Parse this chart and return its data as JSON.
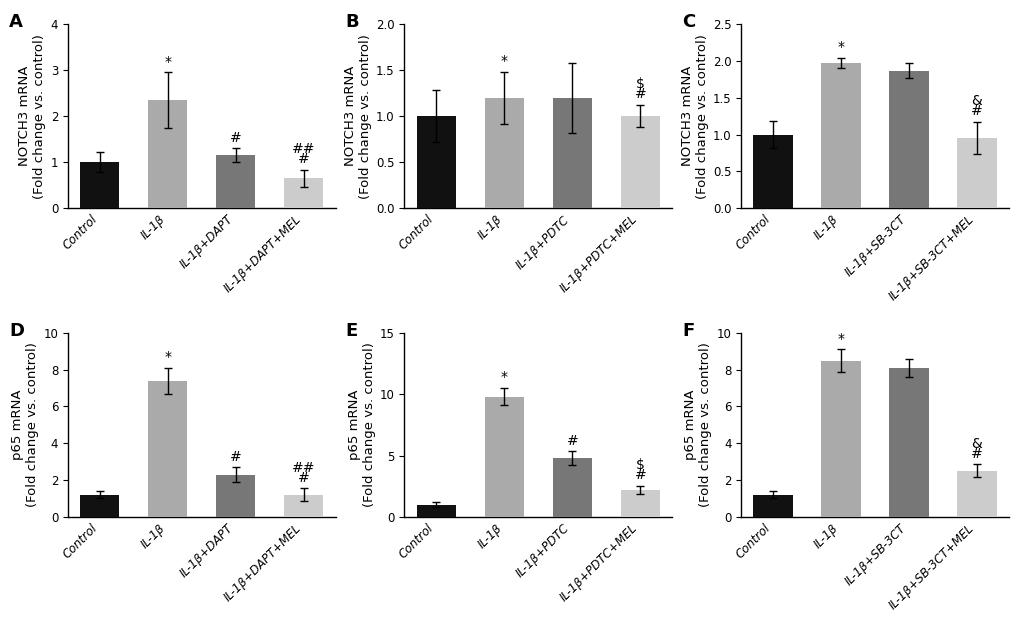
{
  "panels": [
    {
      "label": "A",
      "ylabel": "NOTCH3 mRNA\n(Fold change vs. control)",
      "ylim": [
        0,
        4
      ],
      "yticks": [
        0,
        1,
        2,
        3,
        4
      ],
      "categories": [
        "Control",
        "IL-1β",
        "IL-1β+DAPT",
        "IL-1β+DAPT+MEL"
      ],
      "values": [
        1.0,
        2.35,
        1.15,
        0.65
      ],
      "errors": [
        0.22,
        0.6,
        0.15,
        0.18
      ],
      "colors": [
        "#111111",
        "#aaaaaa",
        "#777777",
        "#cccccc"
      ],
      "annotations": [
        {
          "text": "*",
          "bar_idx": 1,
          "lines": [
            "*"
          ]
        },
        {
          "text": "#",
          "bar_idx": 2,
          "lines": [
            "#"
          ]
        },
        {
          "text": "##\n#",
          "bar_idx": 3,
          "lines": [
            "##",
            "#"
          ]
        }
      ]
    },
    {
      "label": "B",
      "ylabel": "NOTCH3 mRNA\n(Fold change vs. control)",
      "ylim": [
        0,
        2.0
      ],
      "yticks": [
        0,
        0.5,
        1.0,
        1.5,
        2.0
      ],
      "categories": [
        "Control",
        "IL-1β",
        "IL-1β+PDTC",
        "IL-1β+PDTC+MEL"
      ],
      "values": [
        1.0,
        1.2,
        1.2,
        1.0
      ],
      "errors": [
        0.28,
        0.28,
        0.38,
        0.12
      ],
      "colors": [
        "#111111",
        "#aaaaaa",
        "#777777",
        "#cccccc"
      ],
      "annotations": [
        {
          "text": "*",
          "bar_idx": 1,
          "lines": [
            "*"
          ]
        },
        {
          "text": "$\n#",
          "bar_idx": 3,
          "lines": [
            "$",
            "#"
          ]
        }
      ]
    },
    {
      "label": "C",
      "ylabel": "NOTCH3 mRNA\n(Fold change vs. control)",
      "ylim": [
        0,
        2.5
      ],
      "yticks": [
        0,
        0.5,
        1.0,
        1.5,
        2.0,
        2.5
      ],
      "categories": [
        "Control",
        "IL-1β",
        "IL-1β+SB-3CT",
        "IL-1β+SB-3CT+MEL"
      ],
      "values": [
        1.0,
        1.97,
        1.87,
        0.95
      ],
      "errors": [
        0.18,
        0.07,
        0.1,
        0.22
      ],
      "colors": [
        "#111111",
        "#aaaaaa",
        "#777777",
        "#cccccc"
      ],
      "annotations": [
        {
          "text": "*",
          "bar_idx": 1,
          "lines": [
            "*"
          ]
        },
        {
          "text": "&\n#",
          "bar_idx": 3,
          "lines": [
            "&",
            "#"
          ]
        }
      ]
    },
    {
      "label": "D",
      "ylabel": "p65 mRNA\n(Fold change vs. control)",
      "ylim": [
        0,
        10
      ],
      "yticks": [
        0,
        2,
        4,
        6,
        8,
        10
      ],
      "categories": [
        "Control",
        "IL-1β",
        "IL-1β+DAPT",
        "IL-1β+DAPT+MEL"
      ],
      "values": [
        1.2,
        7.4,
        2.3,
        1.2
      ],
      "errors": [
        0.2,
        0.7,
        0.4,
        0.35
      ],
      "colors": [
        "#111111",
        "#aaaaaa",
        "#777777",
        "#cccccc"
      ],
      "annotations": [
        {
          "text": "*",
          "bar_idx": 1,
          "lines": [
            "*"
          ]
        },
        {
          "text": "#",
          "bar_idx": 2,
          "lines": [
            "#"
          ]
        },
        {
          "text": "##\n#",
          "bar_idx": 3,
          "lines": [
            "##",
            "#"
          ]
        }
      ]
    },
    {
      "label": "E",
      "ylabel": "p65 mRNA\n(Fold change vs. control)",
      "ylim": [
        0,
        15
      ],
      "yticks": [
        0,
        5,
        10,
        15
      ],
      "categories": [
        "Control",
        "IL-1β",
        "IL-1β+PDTC",
        "IL-1β+PDTC+MEL"
      ],
      "values": [
        1.0,
        9.8,
        4.8,
        2.2
      ],
      "errors": [
        0.2,
        0.7,
        0.55,
        0.35
      ],
      "colors": [
        "#111111",
        "#aaaaaa",
        "#777777",
        "#cccccc"
      ],
      "annotations": [
        {
          "text": "*",
          "bar_idx": 1,
          "lines": [
            "*"
          ]
        },
        {
          "text": "#",
          "bar_idx": 2,
          "lines": [
            "#"
          ]
        },
        {
          "text": "$\n#",
          "bar_idx": 3,
          "lines": [
            "$",
            "#"
          ]
        }
      ]
    },
    {
      "label": "F",
      "ylabel": "p65 mRNA\n(Fold change vs. control)",
      "ylim": [
        0,
        10
      ],
      "yticks": [
        0,
        2,
        4,
        6,
        8,
        10
      ],
      "categories": [
        "Control",
        "IL-1β",
        "IL-1β+SB-3CT",
        "IL-1β+SB-3CT+MEL"
      ],
      "values": [
        1.2,
        8.5,
        8.1,
        2.5
      ],
      "errors": [
        0.2,
        0.6,
        0.5,
        0.35
      ],
      "colors": [
        "#111111",
        "#aaaaaa",
        "#777777",
        "#cccccc"
      ],
      "annotations": [
        {
          "text": "*",
          "bar_idx": 1,
          "lines": [
            "*"
          ]
        },
        {
          "text": "&\n#",
          "bar_idx": 3,
          "lines": [
            "&",
            "#"
          ]
        }
      ]
    }
  ],
  "background_color": "#ffffff",
  "bar_width": 0.58,
  "ylabel_fontsize": 9.5,
  "tick_fontsize": 8.5,
  "annot_fontsize": 10,
  "panel_label_fontsize": 13
}
